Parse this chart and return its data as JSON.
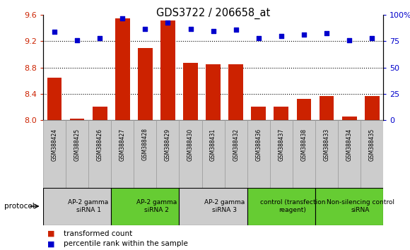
{
  "title": "GDS3722 / 206658_at",
  "samples": [
    "GSM388424",
    "GSM388425",
    "GSM388426",
    "GSM388427",
    "GSM388428",
    "GSM388429",
    "GSM388430",
    "GSM388431",
    "GSM388432",
    "GSM388436",
    "GSM388437",
    "GSM388438",
    "GSM388433",
    "GSM388434",
    "GSM388435"
  ],
  "bar_values": [
    8.65,
    8.02,
    8.2,
    9.55,
    9.1,
    9.52,
    8.87,
    8.85,
    8.85,
    8.2,
    8.2,
    8.32,
    8.37,
    8.05,
    8.37
  ],
  "scatter_values": [
    84,
    76,
    78,
    97,
    87,
    93,
    87,
    85,
    86,
    78,
    80,
    81,
    83,
    76,
    78
  ],
  "ylim_left": [
    8.0,
    9.6
  ],
  "ylim_right": [
    0,
    100
  ],
  "yticks_left": [
    8.0,
    8.4,
    8.8,
    9.2,
    9.6
  ],
  "yticks_right": [
    0,
    25,
    50,
    75,
    100
  ],
  "ytick_labels_right": [
    "0",
    "25",
    "50",
    "75",
    "100%"
  ],
  "bar_color": "#cc2200",
  "scatter_color": "#0000cc",
  "groups": [
    {
      "label": "AP-2 gamma\nsiRNA 1",
      "start": 0,
      "end": 3,
      "color": "#cccccc"
    },
    {
      "label": "AP-2 gamma\nsiRNA 2",
      "start": 3,
      "end": 6,
      "color": "#66cc33"
    },
    {
      "label": "AP-2 gamma\nsiRNA 3",
      "start": 6,
      "end": 9,
      "color": "#cccccc"
    },
    {
      "label": "control (transfection\nreagent)",
      "start": 9,
      "end": 12,
      "color": "#66cc33"
    },
    {
      "label": "Non-silencing control\nsiRNA",
      "start": 12,
      "end": 15,
      "color": "#66cc33"
    }
  ],
  "protocol_label": "protocol",
  "legend_bar_label": "transformed count",
  "legend_scatter_label": "percentile rank within the sample",
  "grid_lines": [
    8.4,
    8.8,
    9.2
  ],
  "bar_width": 0.65,
  "sample_box_color": "#cccccc",
  "bg_color": "#ffffff"
}
